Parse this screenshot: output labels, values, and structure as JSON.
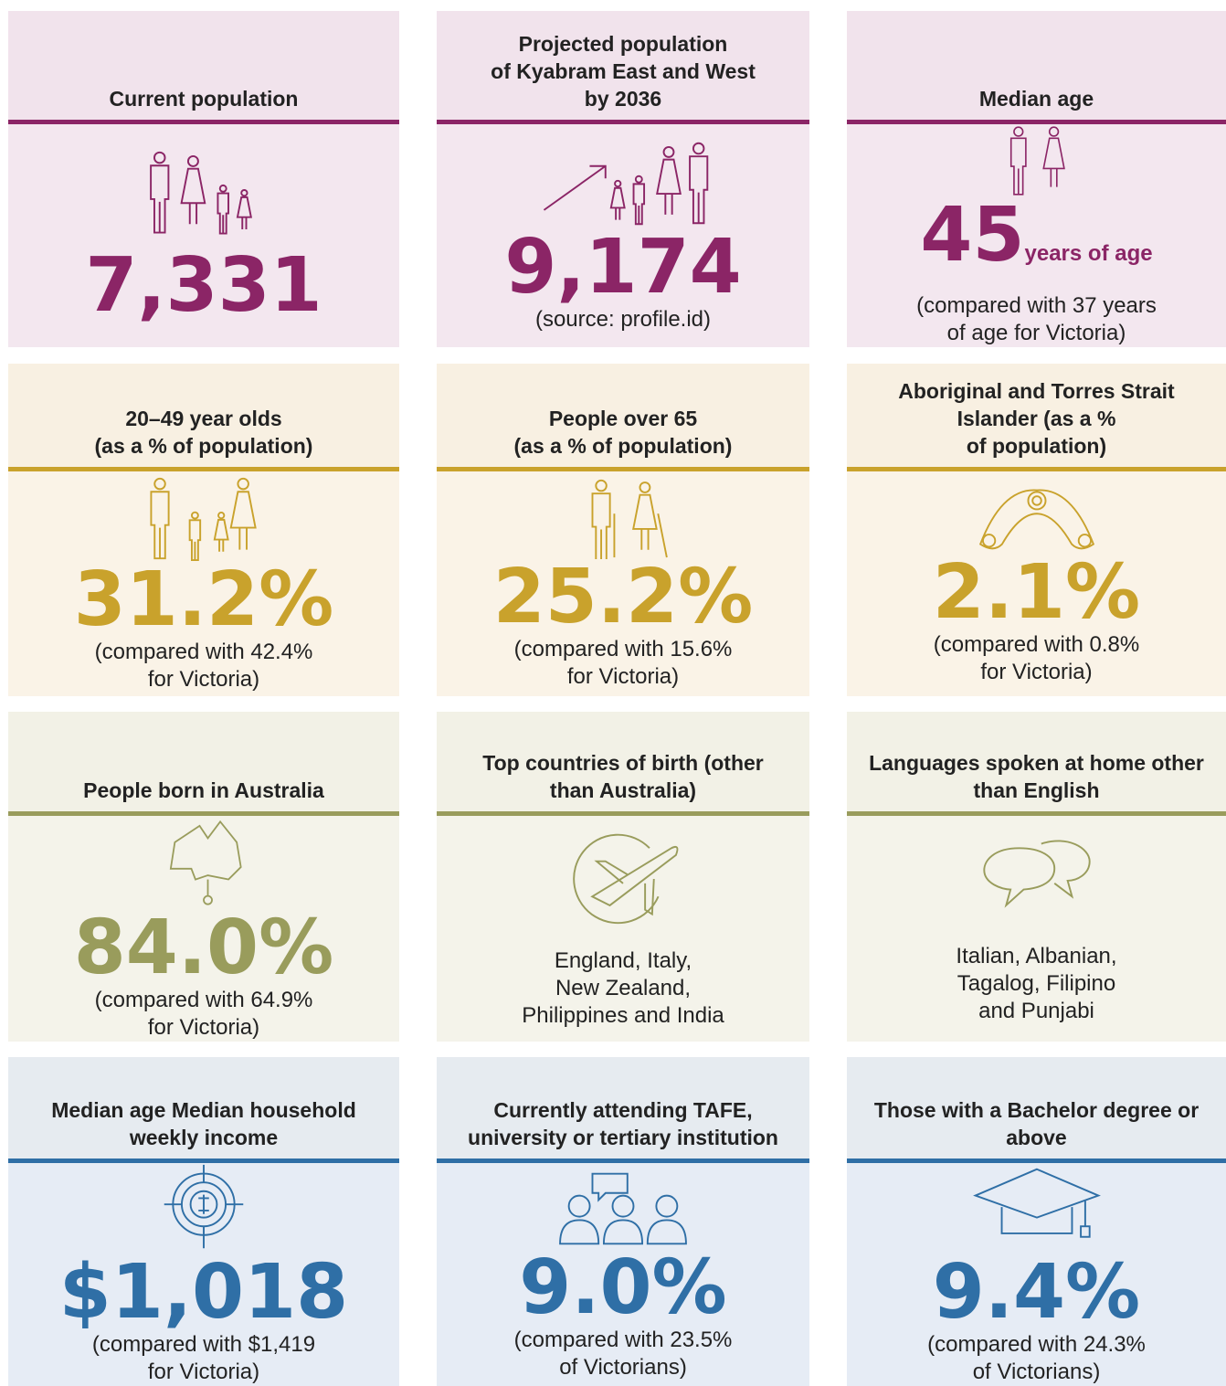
{
  "cards": [
    {
      "title": [
        "Current population"
      ],
      "value": "7,331",
      "note": []
    },
    {
      "title": [
        "Projected population",
        "of Kyabram East and West",
        "by 2036"
      ],
      "value": "9,174",
      "note": [
        "(source: profile.id)"
      ]
    },
    {
      "title": [
        "Median age"
      ],
      "value": "45",
      "unit": "years of age",
      "note": [
        "(compared with 37 years",
        "of age for Victoria)"
      ]
    },
    {
      "title": [
        "20–49 year olds",
        "(as a % of population)"
      ],
      "value": "31.2%",
      "note": [
        "(compared with 42.4%",
        "for Victoria)"
      ]
    },
    {
      "title": [
        "People over 65",
        "(as a % of population)"
      ],
      "value": "25.2%",
      "note": [
        "(compared with 15.6%",
        "for Victoria)"
      ]
    },
    {
      "title": [
        "Aboriginal and Torres Strait",
        "Islander (as a %",
        "of population)"
      ],
      "value": "2.1%",
      "note": [
        "(compared with 0.8%",
        "for Victoria)"
      ]
    },
    {
      "title": [
        "People born in Australia"
      ],
      "value": "84.0%",
      "note": [
        "(compared with 64.9%",
        "for Victoria)"
      ]
    },
    {
      "title": [
        "Top countries of birth (other",
        "than Australia)"
      ],
      "note": [
        "England, Italy,",
        "New Zealand,",
        "Philippines and India"
      ]
    },
    {
      "title": [
        "Languages spoken at home other",
        "than English"
      ],
      "note": [
        "Italian, Albanian,",
        "Tagalog, Filipino",
        "and Punjabi"
      ]
    },
    {
      "title": [
        "Median age Median household",
        "weekly income"
      ],
      "value": "$1,018",
      "note": [
        "(compared with $1,419",
        "for Victoria)"
      ]
    },
    {
      "title": [
        "Currently attending TAFE,",
        "university or tertiary institution"
      ],
      "value": "9.0%",
      "note": [
        "(compared with 23.5%",
        "of Victorians)"
      ]
    },
    {
      "title": [
        "Those with a Bachelor degree or",
        "above"
      ],
      "value": "9.4%",
      "note": [
        "(compared with 24.3%",
        "of Victorians)"
      ]
    }
  ]
}
